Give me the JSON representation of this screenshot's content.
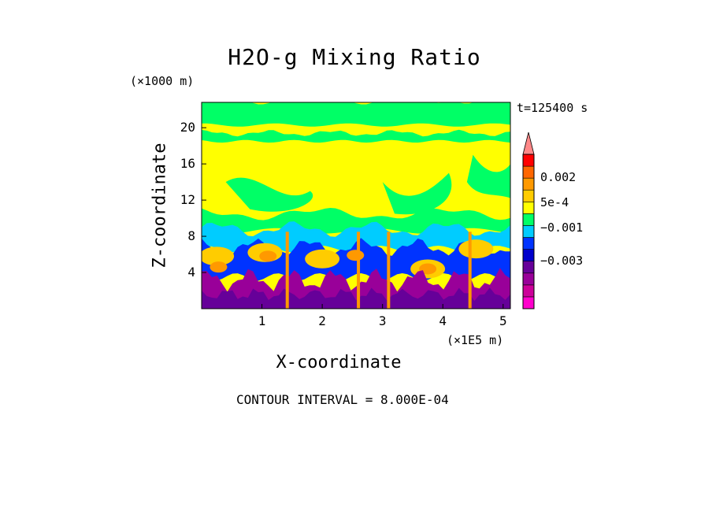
{
  "chart_data": {
    "type": "heatmap",
    "title": "H2O-g Mixing Ratio",
    "xlabel": "X-coordinate",
    "ylabel": "Z-coordinate",
    "x_unit": "(×1E5 m)",
    "y_unit": "(×1000 m)",
    "timestamp": "t=125400 s",
    "footer": "CONTOUR INTERVAL = 8.000E-04",
    "xlim": [
      0,
      5.12
    ],
    "ylim": [
      0,
      22.8
    ],
    "x_ticks": [
      1,
      2,
      3,
      4,
      5
    ],
    "x_tick_labels": [
      "1",
      "2",
      "3",
      "4",
      "5"
    ],
    "y_ticks": [
      4,
      8,
      12,
      16,
      20
    ],
    "y_tick_labels": [
      "4",
      "8",
      "12",
      "16",
      "20"
    ],
    "colorbar": {
      "colors": [
        "#ff00cc",
        "#cc0099",
        "#990099",
        "#660099",
        "#0000cc",
        "#0033ff",
        "#00ccff",
        "#00ff66",
        "#ffff00",
        "#ffcc00",
        "#ff9900",
        "#ff6600",
        "#ff0000",
        "#ff8888"
      ],
      "tick_labels": [
        "0.002",
        "5e-4",
        "−0.001",
        "−0.003"
      ],
      "tick_values": [
        0.002,
        0.0005,
        -0.001,
        -0.003
      ],
      "vmin": -0.0058,
      "vmax": 0.0034,
      "extend": "max"
    },
    "layers": [
      {
        "name": "",
        "z_range": [
          20.5,
          22.8
        ],
        "level_color": "#00ff66"
      },
      {
        "name": "",
        "z_range": [
          9.5,
          20.5
        ],
        "level_color": "#ffff00"
      },
      {
        "name": "",
        "z_range": [
          7.5,
          9.5
        ],
        "level_color": "#00ccff"
      },
      {
        "name": "",
        "z_range": [
          5.5,
          7.5
        ],
        "level_color": "#0033ff"
      },
      {
        "name": "",
        "z_range": [
          0,
          5.5
        ],
        "level_color": "#990099"
      }
    ],
    "grid": false
  }
}
